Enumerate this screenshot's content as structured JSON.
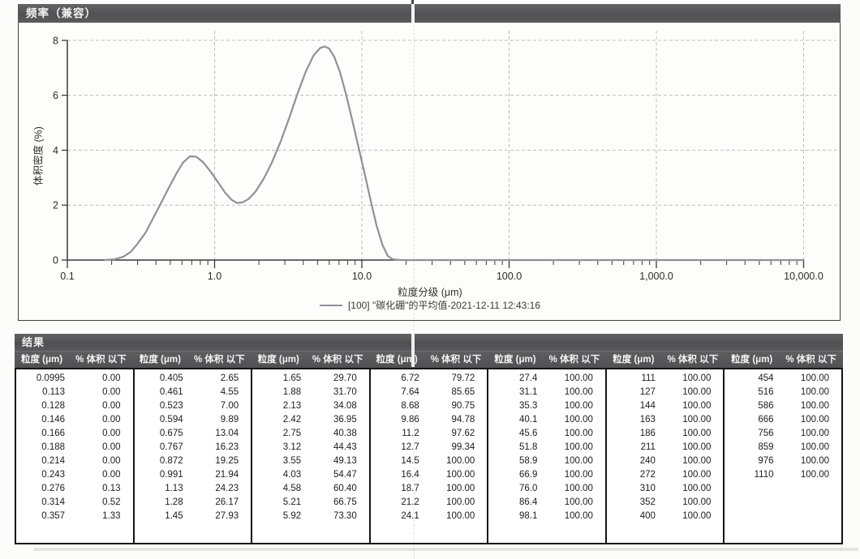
{
  "frequency_panel": {
    "title": "频率（兼容）",
    "ylabel": "体积密度 (%)",
    "xlabel": "粒度分级 (μm)",
    "yticks": [
      "0",
      "2",
      "4",
      "6",
      "8"
    ],
    "xticks": [
      "0.1",
      "1.0",
      "10.0",
      "100.0",
      "1,000.0",
      "10,000.0"
    ]
  },
  "chart_data": {
    "type": "line",
    "title": "频率（兼容）",
    "xlabel": "粒度分级 (μm)",
    "ylabel": "体积密度 (%)",
    "x_scale": "log",
    "xlim": [
      0.1,
      10000
    ],
    "ylim": [
      0,
      8
    ],
    "grid": "dashed",
    "legend_position": "bottom-center",
    "series": [
      {
        "name": "[100] \"碳化硼\"的平均值-2021-12-11 12:43:16",
        "color": "#8f9196",
        "x": [
          0.18,
          0.21,
          0.24,
          0.27,
          0.3,
          0.34,
          0.38,
          0.43,
          0.49,
          0.55,
          0.61,
          0.68,
          0.75,
          0.83,
          0.93,
          1.05,
          1.18,
          1.3,
          1.42,
          1.55,
          1.7,
          1.9,
          2.15,
          2.45,
          2.8,
          3.2,
          3.65,
          4.15,
          4.7,
          5.2,
          5.6,
          6.0,
          6.5,
          7.1,
          7.8,
          8.6,
          9.5,
          10.5,
          11.5,
          12.6,
          13.8,
          15.0,
          16.2,
          18.0,
          30.0,
          10000
        ],
        "y": [
          0.0,
          0.03,
          0.12,
          0.3,
          0.6,
          1.0,
          1.5,
          2.05,
          2.65,
          3.15,
          3.55,
          3.78,
          3.76,
          3.58,
          3.25,
          2.85,
          2.45,
          2.2,
          2.08,
          2.1,
          2.22,
          2.5,
          2.95,
          3.55,
          4.3,
          5.15,
          6.05,
          6.85,
          7.45,
          7.72,
          7.78,
          7.7,
          7.4,
          6.85,
          6.05,
          5.1,
          4.1,
          3.1,
          2.15,
          1.25,
          0.55,
          0.15,
          0.03,
          0.0,
          0.0,
          0.0
        ]
      }
    ]
  },
  "results_panel": {
    "title": "结果",
    "col_headers": {
      "size": "粒度 (μm)",
      "pct": "% 体积 以下"
    },
    "groups": [
      {
        "rows": [
          [
            "0.0995",
            "0.00"
          ],
          [
            "0.113",
            "0.00"
          ],
          [
            "0.128",
            "0.00"
          ],
          [
            "0.146",
            "0.00"
          ],
          [
            "0.166",
            "0.00"
          ],
          [
            "0.188",
            "0.00"
          ],
          [
            "0.214",
            "0.00"
          ],
          [
            "0.243",
            "0.00"
          ],
          [
            "0.276",
            "0.13"
          ],
          [
            "0.314",
            "0.52"
          ],
          [
            "0.357",
            "1.33"
          ]
        ]
      },
      {
        "rows": [
          [
            "0.405",
            "2.65"
          ],
          [
            "0.461",
            "4.55"
          ],
          [
            "0.523",
            "7.00"
          ],
          [
            "0.594",
            "9.89"
          ],
          [
            "0.675",
            "13.04"
          ],
          [
            "0.767",
            "16.23"
          ],
          [
            "0.872",
            "19.25"
          ],
          [
            "0.991",
            "21.94"
          ],
          [
            "1.13",
            "24.23"
          ],
          [
            "1.28",
            "26.17"
          ],
          [
            "1.45",
            "27.93"
          ]
        ]
      },
      {
        "rows": [
          [
            "1.65",
            "29.70"
          ],
          [
            "1.88",
            "31.70"
          ],
          [
            "2.13",
            "34.08"
          ],
          [
            "2.42",
            "36.95"
          ],
          [
            "2.75",
            "40.38"
          ],
          [
            "3.12",
            "44.43"
          ],
          [
            "3.55",
            "49.13"
          ],
          [
            "4.03",
            "54.47"
          ],
          [
            "4.58",
            "60.40"
          ],
          [
            "5.21",
            "66.75"
          ],
          [
            "5.92",
            "73.30"
          ]
        ]
      },
      {
        "rows": [
          [
            "6.72",
            "79.72"
          ],
          [
            "7.64",
            "85.65"
          ],
          [
            "8.68",
            "90.75"
          ],
          [
            "9.86",
            "94.78"
          ],
          [
            "11.2",
            "97.62"
          ],
          [
            "12.7",
            "99.34"
          ],
          [
            "14.5",
            "100.00"
          ],
          [
            "16.4",
            "100.00"
          ],
          [
            "18.7",
            "100.00"
          ],
          [
            "21.2",
            "100.00"
          ],
          [
            "24.1",
            "100.00"
          ]
        ]
      },
      {
        "rows": [
          [
            "27.4",
            "100.00"
          ],
          [
            "31.1",
            "100.00"
          ],
          [
            "35.3",
            "100.00"
          ],
          [
            "40.1",
            "100.00"
          ],
          [
            "45.6",
            "100.00"
          ],
          [
            "51.8",
            "100.00"
          ],
          [
            "58.9",
            "100.00"
          ],
          [
            "66.9",
            "100.00"
          ],
          [
            "76.0",
            "100.00"
          ],
          [
            "86.4",
            "100.00"
          ],
          [
            "98.1",
            "100.00"
          ]
        ]
      },
      {
        "rows": [
          [
            "111",
            "100.00"
          ],
          [
            "127",
            "100.00"
          ],
          [
            "144",
            "100.00"
          ],
          [
            "163",
            "100.00"
          ],
          [
            "186",
            "100.00"
          ],
          [
            "211",
            "100.00"
          ],
          [
            "240",
            "100.00"
          ],
          [
            "272",
            "100.00"
          ],
          [
            "310",
            "100.00"
          ],
          [
            "352",
            "100.00"
          ],
          [
            "400",
            "100.00"
          ]
        ]
      },
      {
        "rows": [
          [
            "454",
            "100.00"
          ],
          [
            "516",
            "100.00"
          ],
          [
            "586",
            "100.00"
          ],
          [
            "666",
            "100.00"
          ],
          [
            "756",
            "100.00"
          ],
          [
            "859",
            "100.00"
          ],
          [
            "976",
            "100.00"
          ],
          [
            "1110",
            "100.00"
          ]
        ]
      }
    ]
  },
  "colors": {
    "header_bar": "#57575a",
    "curve": "#8f9196",
    "grid": "#bdbdbd",
    "axis": "#3a3a3a",
    "table_border": "#141414",
    "tick_text": "#2b2b2b"
  }
}
